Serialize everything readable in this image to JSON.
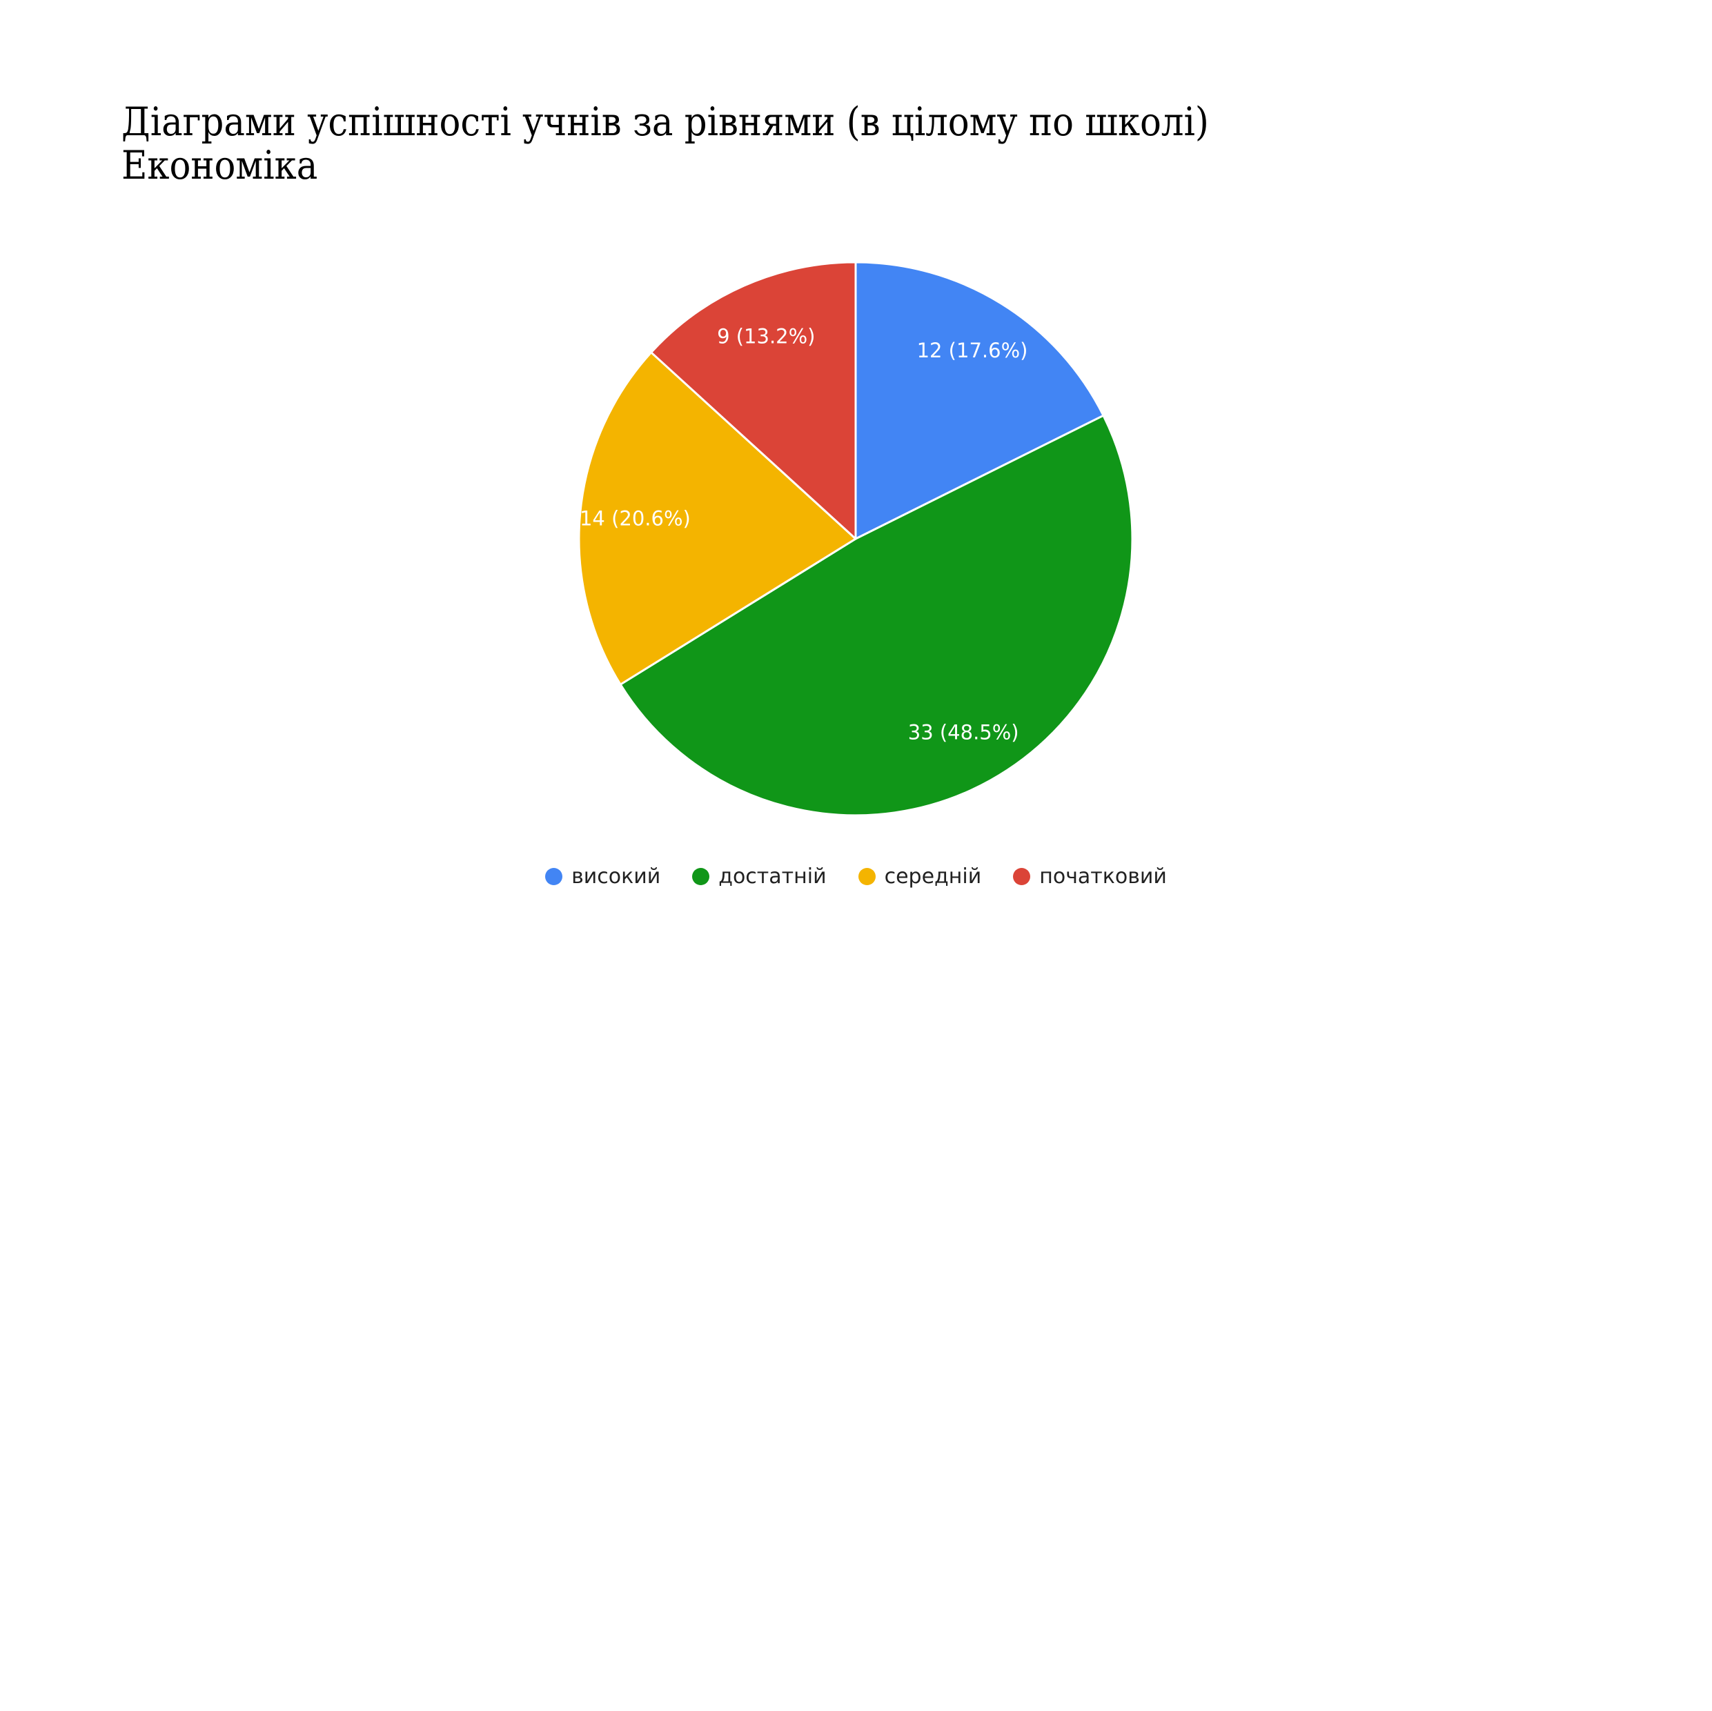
{
  "title": {
    "line1": "Діаграми успішності учнів за рівнями (в цілому по школі)",
    "line2": "Економіка"
  },
  "chart_data": {
    "type": "pie",
    "title": "Діаграми успішності учнів за рівнями (в цілому по школі) Економіка",
    "total": 68,
    "start_angle_deg": 0,
    "direction": "clockwise",
    "labels_inside": true,
    "legend_position": "bottom",
    "slices": [
      {
        "label": "високий",
        "value": 12,
        "pct": 17.6,
        "display": "12 (17.6%)",
        "color": "#4285F4"
      },
      {
        "label": "достатній",
        "value": 33,
        "pct": 48.5,
        "display": "33 (48.5%)",
        "color": "#109618"
      },
      {
        "label": "середній",
        "value": 14,
        "pct": 20.6,
        "display": "14 (20.6%)",
        "color": "#F4B400"
      },
      {
        "label": "початковий",
        "value": 9,
        "pct": 13.2,
        "display": "9 (13.2%)",
        "color": "#DB4437"
      }
    ],
    "slice_divider_color": "#ffffff",
    "label_text_color": "#ffffff"
  }
}
